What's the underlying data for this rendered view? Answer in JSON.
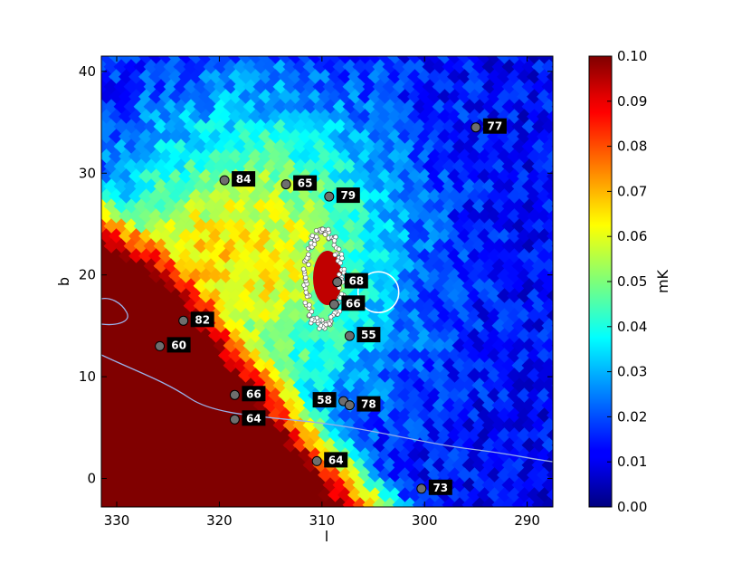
{
  "chart_data": {
    "type": "heatmap",
    "xlabel": "l",
    "ylabel": "b",
    "xlim": [
      331.5,
      287.5
    ],
    "ylim": [
      -2.8,
      41.5
    ],
    "x_ticks": [
      330,
      320,
      310,
      300,
      290
    ],
    "y_ticks": [
      0,
      10,
      20,
      30,
      40
    ],
    "colorbar": {
      "label": "mK",
      "range": [
        0.0,
        0.1
      ],
      "ticks": [
        "0.00",
        "0.01",
        "0.02",
        "0.03",
        "0.04",
        "0.05",
        "0.06",
        "0.07",
        "0.08",
        "0.09",
        "0.10"
      ],
      "colormap": "jet"
    },
    "markers": [
      {
        "l": 295.0,
        "b": 34.5,
        "label": "77"
      },
      {
        "l": 319.5,
        "b": 29.3,
        "label": "84"
      },
      {
        "l": 313.5,
        "b": 28.9,
        "label": "65"
      },
      {
        "l": 309.3,
        "b": 27.7,
        "label": "79"
      },
      {
        "l": 308.5,
        "b": 19.3,
        "label": "68"
      },
      {
        "l": 308.8,
        "b": 17.1,
        "label": "66"
      },
      {
        "l": 323.5,
        "b": 15.5,
        "label": "82"
      },
      {
        "l": 307.3,
        "b": 14.0,
        "label": "55"
      },
      {
        "l": 325.8,
        "b": 13.0,
        "label": "60"
      },
      {
        "l": 318.5,
        "b": 8.2,
        "label": "66"
      },
      {
        "l": 307.9,
        "b": 7.6,
        "label": "58"
      },
      {
        "l": 307.3,
        "b": 7.2,
        "label": "78"
      },
      {
        "l": 318.5,
        "b": 5.8,
        "label": "64"
      },
      {
        "l": 310.5,
        "b": 1.7,
        "label": "64"
      },
      {
        "l": 300.3,
        "b": -1.0,
        "label": "73"
      }
    ],
    "circle": {
      "l": 304.5,
      "b": 18.3,
      "radius_deg": 2.0
    }
  }
}
